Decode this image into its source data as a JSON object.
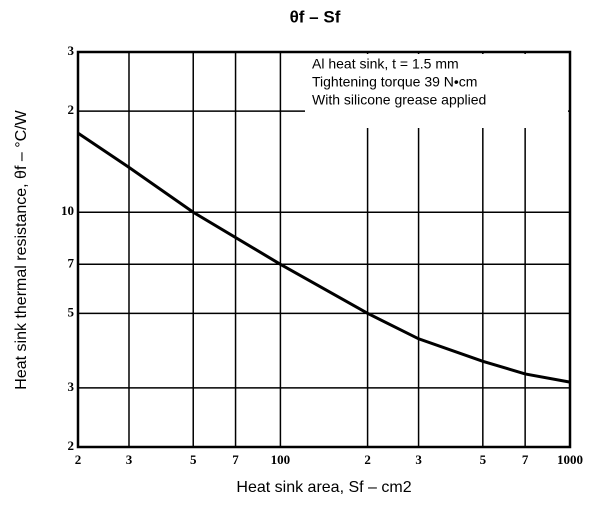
{
  "chart_data": {
    "type": "line",
    "title": "θf – Sf",
    "x_label": "Heat sink area, Sf – cm2",
    "y_label": "Heat sink thermal resistance, θf – °C/W",
    "annotations": [
      "Al heat sink, t = 1.5 mm",
      "Tightening torque 39 N•cm",
      "With silicone grease applied"
    ],
    "x": [
      20,
      30,
      50,
      100,
      200,
      300,
      500,
      700,
      1000
    ],
    "series": [
      {
        "name": "θf",
        "color": "#000000",
        "values": [
          17.2,
          13.6,
          10,
          7,
          5,
          4.2,
          3.6,
          3.3,
          3.12
        ]
      }
    ],
    "xscale": "log",
    "yscale": "log",
    "xlim": [
      20,
      1000
    ],
    "ylim": [
      2,
      30
    ],
    "xticks": [
      {
        "value": 20,
        "label": "2"
      },
      {
        "value": 30,
        "label": "3"
      },
      {
        "value": 50,
        "label": "5"
      },
      {
        "value": 70,
        "label": "7"
      },
      100,
      {
        "value": 200,
        "label": "2"
      },
      {
        "value": 300,
        "label": "3"
      },
      {
        "value": 500,
        "label": "5"
      },
      {
        "value": 700,
        "label": "7"
      },
      1000
    ],
    "yticks": [
      2,
      3,
      5,
      7,
      10,
      {
        "value": 20,
        "label": "2"
      },
      {
        "value": 30,
        "label": "3"
      }
    ],
    "grid": true
  }
}
